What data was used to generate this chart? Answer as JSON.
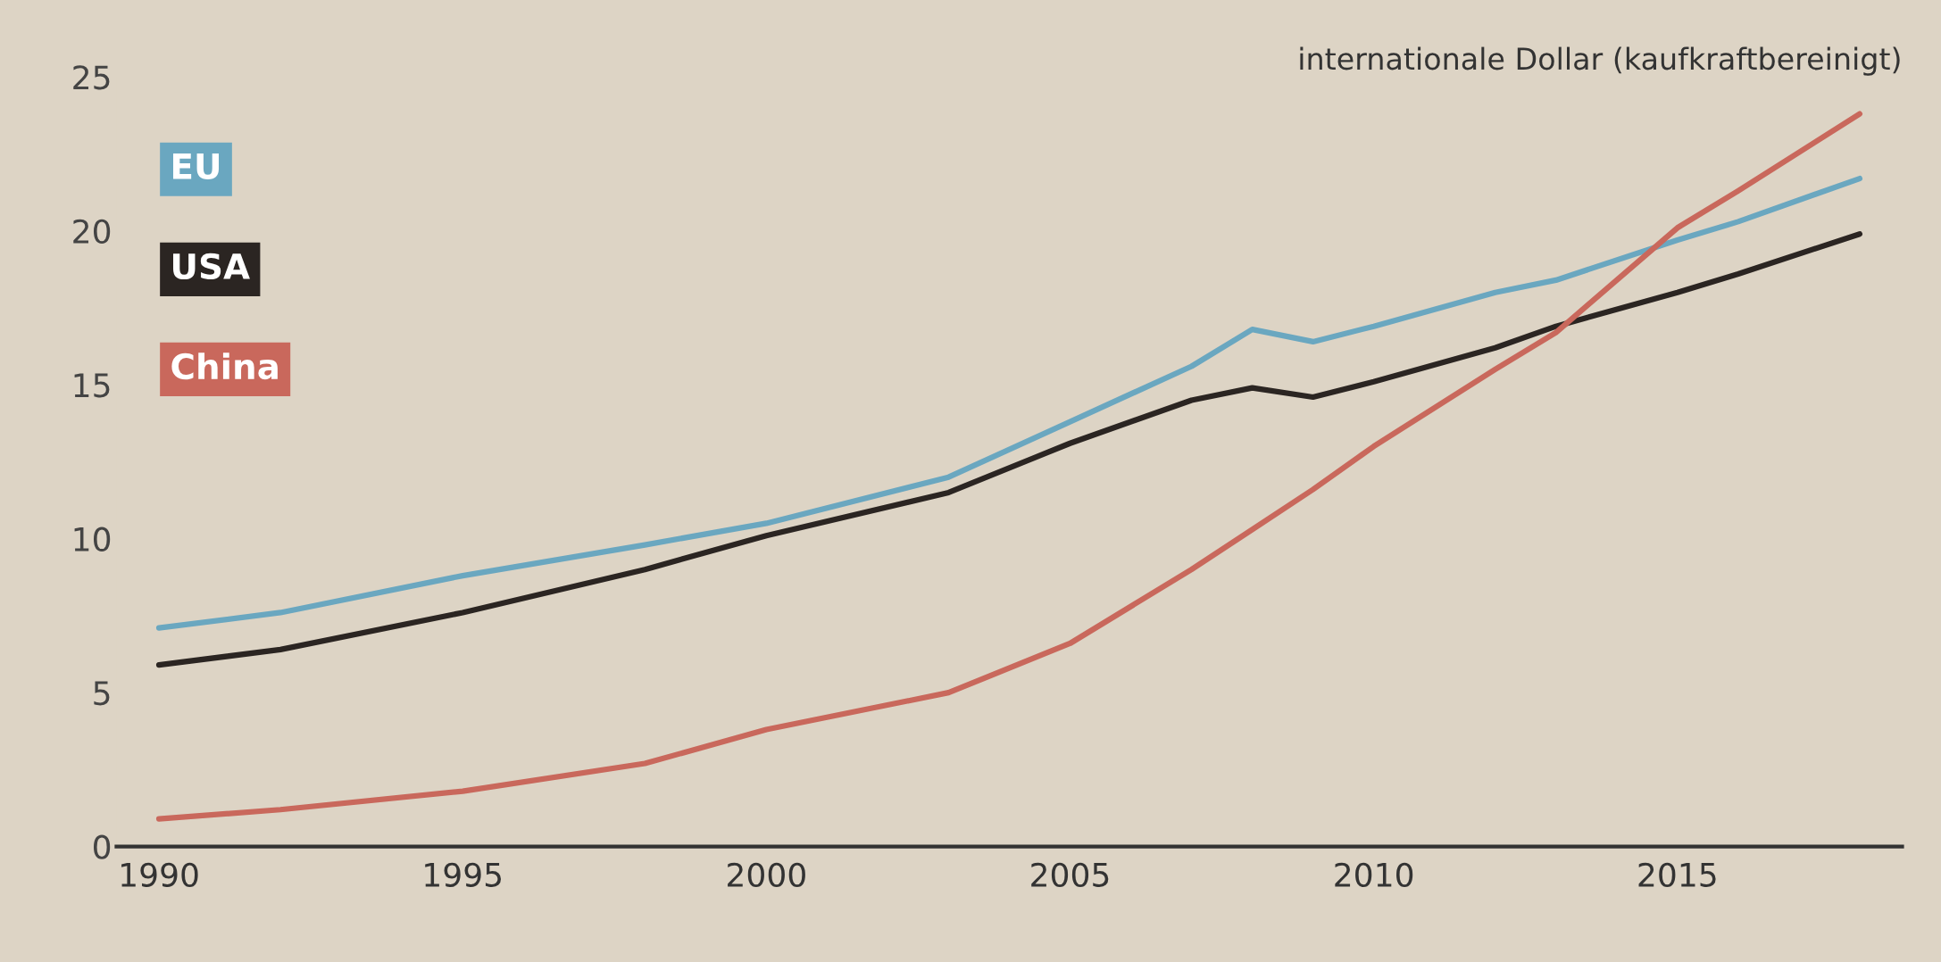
{
  "chart_data": {
    "type": "line",
    "title": "internationale Dollar (kaufkraftbereinigt)",
    "x": [
      1990,
      1992,
      1995,
      1998,
      2000,
      2003,
      2005,
      2007,
      2008,
      2009,
      2010,
      2012,
      2013,
      2015,
      2016,
      2018
    ],
    "series": [
      {
        "name": "EU",
        "color": "#6aa7c0",
        "values": [
          7.1,
          7.6,
          8.8,
          9.8,
          10.5,
          12.0,
          13.8,
          15.6,
          16.8,
          16.4,
          16.9,
          18.0,
          18.4,
          19.7,
          20.3,
          21.7
        ]
      },
      {
        "name": "USA",
        "color": "#2b2522",
        "values": [
          5.9,
          6.4,
          7.6,
          9.0,
          10.1,
          11.5,
          13.1,
          14.5,
          14.9,
          14.6,
          15.1,
          16.2,
          16.9,
          18.0,
          18.6,
          19.9
        ]
      },
      {
        "name": "China",
        "color": "#c9685c",
        "values": [
          0.9,
          1.2,
          1.8,
          2.7,
          3.8,
          5.0,
          6.6,
          9.0,
          10.3,
          11.6,
          13.0,
          15.5,
          16.7,
          20.1,
          21.3,
          23.8
        ]
      }
    ],
    "xlim": [
      1989.3,
      2018.7
    ],
    "xticks": [
      1990,
      1995,
      2000,
      2005,
      2010,
      2015
    ],
    "ylim": [
      0,
      25
    ],
    "yticks": [
      0,
      5,
      10,
      15,
      20,
      25
    ],
    "grid": false,
    "legend": "top left",
    "marker": "none",
    "line_style": "solid"
  }
}
